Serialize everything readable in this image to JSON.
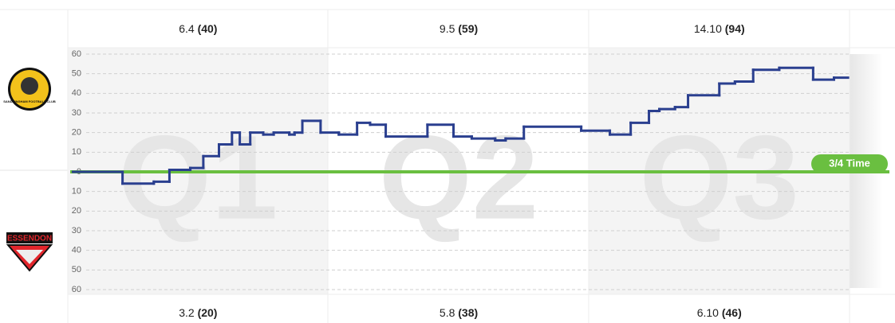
{
  "chart_data": {
    "type": "step",
    "line_color": "#2a3f8f",
    "zero_color": "#6abf40",
    "annotation": "3/4 Time",
    "quarters": [
      "Q1",
      "Q2",
      "Q3"
    ],
    "top_scores": [
      {
        "score": "6.4",
        "points": "(40)"
      },
      {
        "score": "9.5",
        "points": "(59)"
      },
      {
        "score": "14.10",
        "points": "(94)"
      }
    ],
    "bottom_scores": [
      {
        "score": "3.2",
        "points": "(20)"
      },
      {
        "score": "5.8",
        "points": "(38)"
      },
      {
        "score": "6.10",
        "points": "(46)"
      }
    ],
    "xlim": [
      0,
      3
    ],
    "ylim": [
      -60,
      60
    ],
    "yticks": [
      60,
      50,
      40,
      30,
      20,
      10,
      0,
      {
        "value": -10,
        "label": "10"
      },
      {
        "value": -20,
        "label": "20"
      },
      {
        "value": -30,
        "label": "30"
      },
      {
        "value": -40,
        "label": "40"
      },
      {
        "value": -50,
        "label": "50"
      },
      {
        "value": -60,
        "label": "60"
      }
    ],
    "grid": true,
    "series": [
      {
        "x": [
          0.02,
          0.21,
          0.33,
          0.39,
          0.47,
          0.52,
          0.58,
          0.63,
          0.66,
          0.7,
          0.75,
          0.79,
          0.85,
          0.87,
          0.9,
          0.97,
          1.04,
          1.11,
          1.16,
          1.22,
          1.38,
          1.48,
          1.55,
          1.64,
          1.68,
          1.75,
          1.97,
          2.08,
          2.16,
          2.23,
          2.27,
          2.33,
          2.38,
          2.5,
          2.56,
          2.63,
          2.73,
          2.86,
          2.94
        ],
        "values": [
          0,
          -6,
          -5,
          1,
          2,
          8,
          14,
          20,
          14,
          20,
          19,
          20,
          19,
          20,
          26,
          20,
          19,
          25,
          24,
          18,
          24,
          18,
          17,
          16,
          17,
          23,
          21,
          19,
          25,
          31,
          32,
          33,
          39,
          45,
          46,
          52,
          53,
          47,
          48
        ]
      }
    ]
  },
  "teams": [
    {
      "logo_text": "SANDRINGHAM FOOTBALL CLUB"
    },
    {
      "logo_text": "ESSENDON"
    }
  ]
}
